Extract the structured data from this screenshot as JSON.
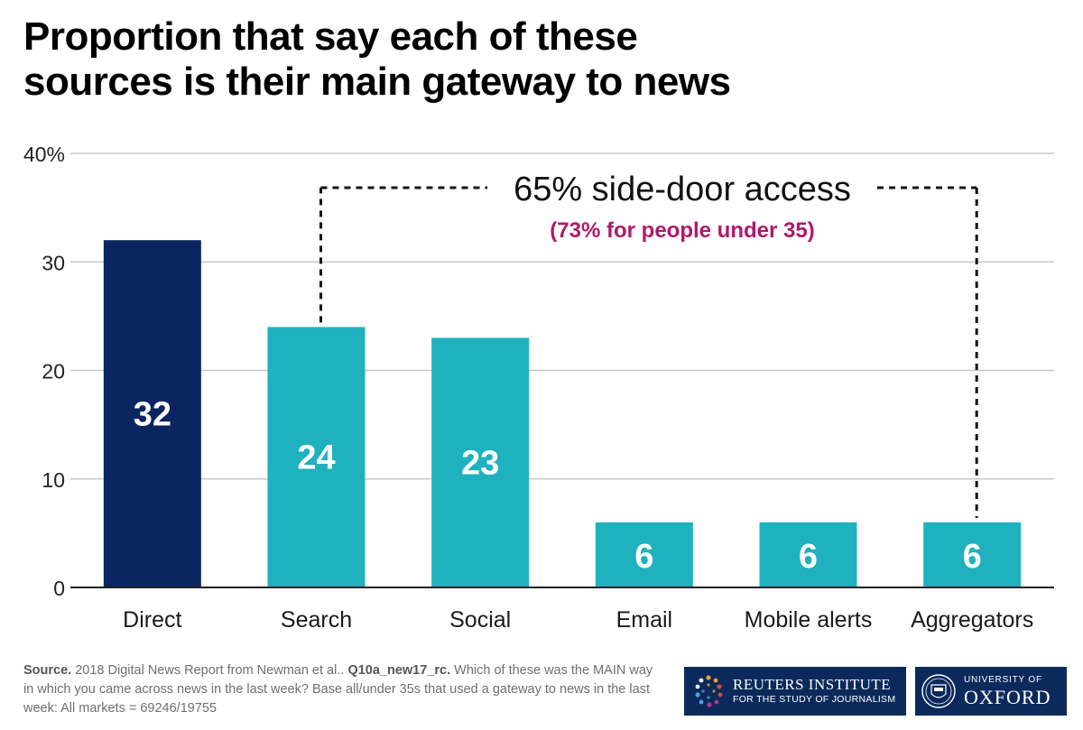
{
  "title": {
    "line1": "Proportion that say each of these",
    "line2": "sources is their main gateway to news"
  },
  "chart_data": {
    "type": "bar",
    "categories": [
      "Direct",
      "Search",
      "Social",
      "Email",
      "Mobile alerts",
      "Aggregators"
    ],
    "values": [
      32,
      24,
      23,
      6,
      6,
      6
    ],
    "data_labels": [
      "32",
      "24",
      "23",
      "6",
      "6",
      "6"
    ],
    "colors": [
      "#0b2561",
      "#1fb1be",
      "#1fb1be",
      "#1fb1be",
      "#1fb1be",
      "#1fb1be"
    ],
    "ylim": [
      0,
      40
    ],
    "yticks": [
      0,
      10,
      20,
      30,
      40
    ],
    "ytick_labels": [
      "0",
      "10",
      "20",
      "30",
      "40%"
    ],
    "grid": true,
    "annotation": {
      "text": "65% side-door access",
      "subtext": "(73% for people under 35)",
      "subtext_color": "#b0186a",
      "from_category": "Search",
      "to_category": "Aggregators"
    }
  },
  "footer": {
    "source_label": "Source.",
    "source_text": " 2018 Digital News Report from Newman et al.. ",
    "question_code": "Q10a_new17_rc.",
    "question_text": " Which of these was the MAIN way in which you came across news in the last week? Base all/under 35s that used a gateway to news in the last week: All markets = 69246/19755"
  },
  "logos": {
    "reuters_line1": "REUTERS INSTITUTE",
    "reuters_line2": "FOR THE STUDY OF JOURNALISM",
    "oxford_line1": "UNIVERSITY OF",
    "oxford_line2": "OXFORD"
  }
}
